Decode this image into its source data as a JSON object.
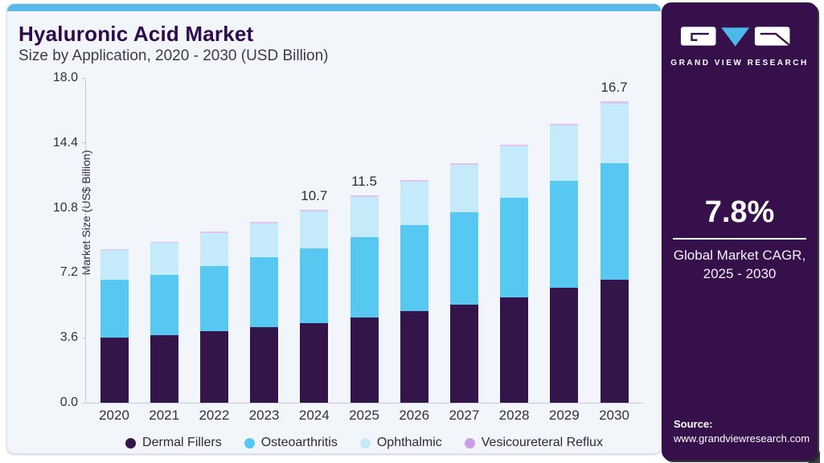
{
  "header": {
    "title": "Hyaluronic Acid Market",
    "subtitle": "Size by Application, 2020 - 2030 (USD Billion)"
  },
  "chart_data": {
    "type": "bar",
    "stacked": true,
    "title": "Hyaluronic Acid Market Size by Application, 2020 - 2030 (USD Billion)",
    "xlabel": "",
    "ylabel": "Market Size (US$ Billion)",
    "ylim": [
      0,
      18
    ],
    "yticks": [
      "0.0",
      "3.6",
      "7.2",
      "10.8",
      "14.4",
      "18.0"
    ],
    "grid": false,
    "legend_position": "bottom",
    "categories": [
      "2020",
      "2021",
      "2022",
      "2023",
      "2024",
      "2025",
      "2026",
      "2027",
      "2028",
      "2029",
      "2030"
    ],
    "series": [
      {
        "name": "Dermal Fillers",
        "color": "#341549",
        "values": [
          3.62,
          3.76,
          3.96,
          4.18,
          4.41,
          4.74,
          5.06,
          5.43,
          5.82,
          6.35,
          6.81
        ]
      },
      {
        "name": "Osteoarthritis",
        "color": "#57c8f2",
        "values": [
          3.2,
          3.34,
          3.6,
          3.87,
          4.15,
          4.45,
          4.79,
          5.15,
          5.56,
          5.95,
          6.47
        ]
      },
      {
        "name": "Ophthalmic",
        "color": "#c5eafa",
        "values": [
          1.64,
          1.76,
          1.84,
          1.9,
          2.06,
          2.22,
          2.39,
          2.6,
          2.82,
          3.07,
          3.31
        ]
      },
      {
        "name": "Vesicoureteral Reflux",
        "color": "#dfc3f1",
        "legend_color": "#c99fe6",
        "values": [
          0.07,
          0.07,
          0.08,
          0.08,
          0.08,
          0.09,
          0.09,
          0.1,
          0.1,
          0.1,
          0.11
        ]
      }
    ],
    "totals_shown": {
      "2024": "10.7",
      "2025": "11.5",
      "2030": "16.7"
    }
  },
  "sidebar": {
    "brand": "GRAND VIEW RESEARCH",
    "cagr_value": "7.8%",
    "cagr_label_line1": "Global Market CAGR,",
    "cagr_label_line2": "2025 - 2030",
    "source_label": "Source:",
    "source_url": "www.grandviewresearch.com"
  },
  "colors": {
    "accent_strip": "#59b9e8",
    "title_purple": "#2e0a4d",
    "sidebar_bg": "#36104b",
    "logo_triangle_blue": "#4cb9ea",
    "axis_line": "#c5cbd2"
  }
}
